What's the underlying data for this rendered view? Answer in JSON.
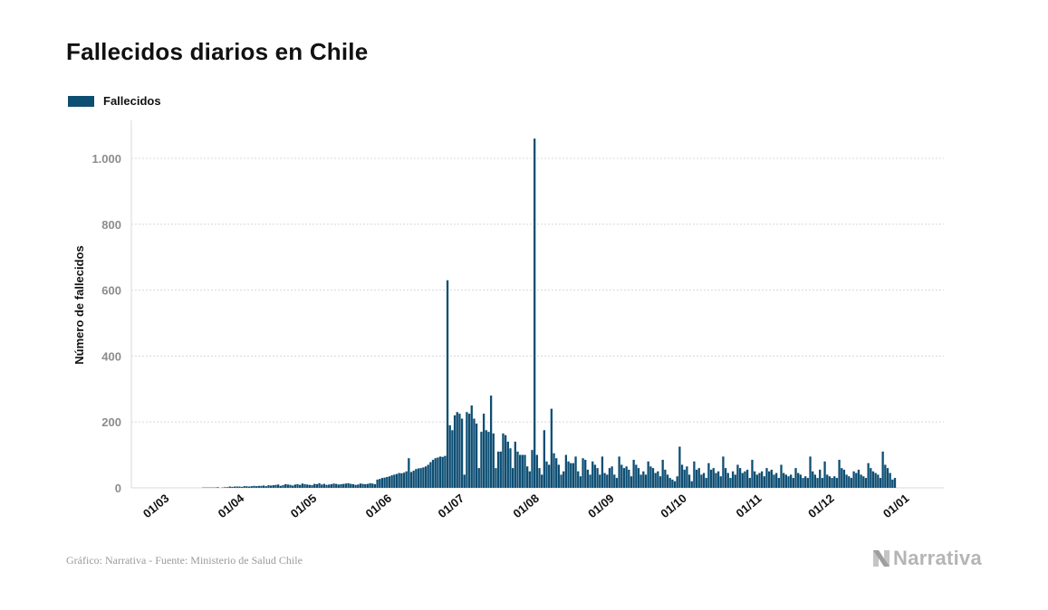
{
  "title": "Fallecidos diarios en Chile",
  "footer": "Gráfico: Narrativa - Fuente: Ministerio de Salud Chile",
  "brand": "Narrativa",
  "brand_icon": "narrativa-logo-icon",
  "colors": {
    "bar": "#0d4e73",
    "grid": "#d8d8d8",
    "tick": "#8c8c8c",
    "text": "#111111",
    "muted": "#b5b5b5"
  },
  "chart_data": {
    "type": "bar",
    "series_name": "Fallecidos",
    "ylabel": "Número de fallecidos",
    "xlabel": "",
    "ylim": [
      0,
      1100
    ],
    "yticks": [
      0,
      200,
      400,
      600,
      800,
      1000
    ],
    "ytick_labels": [
      "0",
      "200",
      "400",
      "600",
      "800",
      "1.000"
    ],
    "xticks": [
      "01/03",
      "01/04",
      "01/05",
      "01/06",
      "01/07",
      "01/08",
      "01/09",
      "01/10",
      "01/11",
      "01/12",
      "01/01"
    ],
    "xtick_days": [
      0,
      31,
      61,
      92,
      122,
      153,
      184,
      214,
      245,
      275,
      306
    ],
    "x_start": "2020-03-01",
    "grid": true,
    "legend_position": "top-left",
    "values": [
      0,
      0,
      0,
      0,
      0,
      0,
      0,
      0,
      0,
      0,
      0,
      0,
      0,
      0,
      0,
      0,
      0,
      0,
      0,
      1,
      1,
      1,
      1,
      1,
      1,
      2,
      0,
      1,
      2,
      2,
      4,
      3,
      4,
      4,
      4,
      3,
      5,
      5,
      4,
      5,
      6,
      5,
      6,
      6,
      7,
      5,
      8,
      7,
      8,
      9,
      10,
      6,
      8,
      11,
      10,
      9,
      7,
      10,
      11,
      9,
      13,
      11,
      10,
      9,
      8,
      12,
      11,
      14,
      10,
      12,
      9,
      10,
      11,
      13,
      12,
      10,
      11,
      12,
      13,
      14,
      12,
      11,
      9,
      10,
      13,
      12,
      11,
      12,
      14,
      13,
      11,
      25,
      27,
      30,
      31,
      33,
      35,
      38,
      40,
      42,
      45,
      44,
      46,
      50,
      90,
      48,
      52,
      57,
      59,
      60,
      62,
      65,
      70,
      78,
      85,
      90,
      92,
      95,
      94,
      97,
      630,
      190,
      175,
      220,
      230,
      225,
      210,
      40,
      230,
      225,
      250,
      210,
      195,
      60,
      170,
      225,
      175,
      170,
      280,
      165,
      60,
      110,
      110,
      165,
      160,
      140,
      120,
      60,
      140,
      110,
      100,
      100,
      100,
      65,
      50,
      115,
      1060,
      100,
      60,
      40,
      175,
      80,
      70,
      240,
      105,
      90,
      70,
      40,
      50,
      100,
      80,
      75,
      75,
      95,
      50,
      35,
      90,
      85,
      55,
      40,
      80,
      70,
      60,
      40,
      95,
      45,
      40,
      60,
      65,
      40,
      30,
      95,
      70,
      60,
      65,
      55,
      35,
      85,
      70,
      60,
      40,
      50,
      40,
      80,
      65,
      60,
      45,
      50,
      35,
      85,
      55,
      40,
      30,
      25,
      20,
      35,
      125,
      70,
      55,
      65,
      40,
      20,
      80,
      55,
      60,
      40,
      45,
      30,
      75,
      55,
      60,
      45,
      50,
      35,
      95,
      60,
      45,
      30,
      50,
      40,
      70,
      60,
      45,
      50,
      55,
      30,
      85,
      50,
      40,
      45,
      50,
      35,
      60,
      50,
      55,
      40,
      45,
      30,
      70,
      45,
      40,
      35,
      40,
      30,
      60,
      45,
      40,
      30,
      35,
      30,
      95,
      50,
      40,
      30,
      55,
      30,
      80,
      40,
      35,
      30,
      35,
      30,
      85,
      60,
      55,
      40,
      35,
      30,
      50,
      45,
      55,
      40,
      35,
      30,
      75,
      60,
      50,
      45,
      40,
      30,
      110,
      70,
      60,
      45,
      25,
      30
    ]
  }
}
